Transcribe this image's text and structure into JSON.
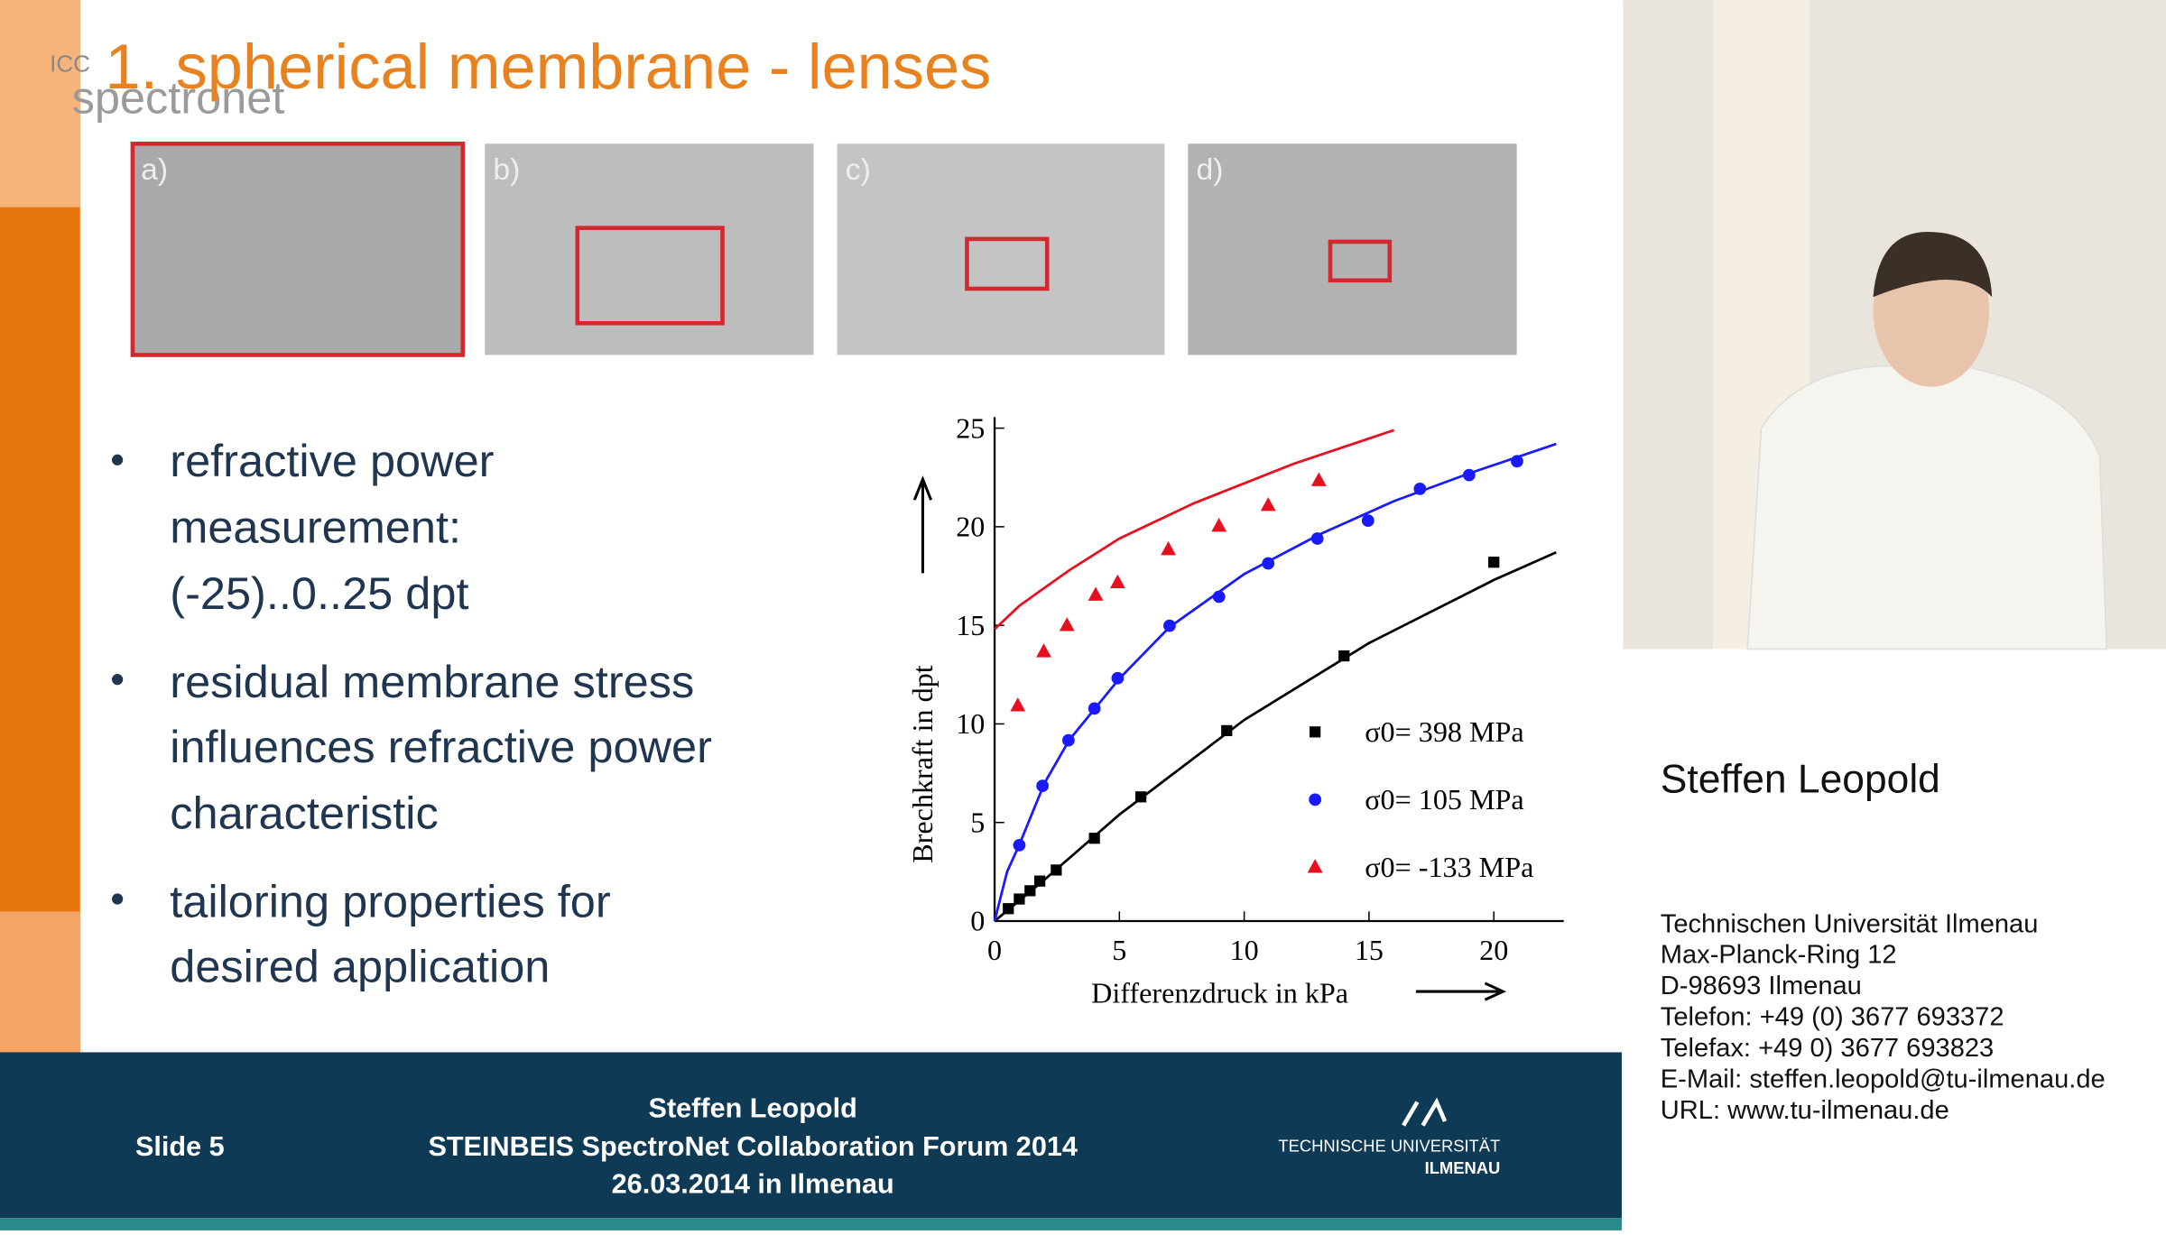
{
  "slide": {
    "logo": {
      "top": "ICC",
      "bottom": "spectronet"
    },
    "title": "1. spherical membrane - lenses",
    "panels": [
      "a)",
      "b)",
      "c)",
      "d)"
    ],
    "bullets": [
      [
        "refractive power",
        "measurement:",
        "(-25)..0..25 dpt"
      ],
      [
        "residual membrane stress",
        "influences refractive power",
        "characteristic"
      ],
      [
        "tailoring properties for",
        "desired application"
      ]
    ],
    "footer": {
      "slide": "Slide 5",
      "lines": [
        "Steffen Leopold",
        "STEINBEIS SpectroNet Collaboration Forum 2014",
        "26.03.2014 in Ilmenau"
      ],
      "logo": [
        "TECHNISCHE UNIVERSITÄT",
        "ILMENAU"
      ]
    }
  },
  "speaker": {
    "name": "Steffen Leopold",
    "contact": [
      "Technischen Universität Ilmenau",
      "Max-Planck-Ring 12",
      "D-98693 Ilmenau",
      "Telefon: +49 (0) 3677 693372",
      "Telefax: +49 0) 3677 693823",
      "E-Mail: steffen.leopold@tu-ilmenau.de",
      "URL: www.tu-ilmenau.de"
    ]
  },
  "chart_data": {
    "type": "scatter",
    "x_label": "Differenzdruck in kPa",
    "y_label": "Brechkraft in dpt",
    "xlim": [
      0,
      22.8
    ],
    "ylim": [
      0,
      25
    ],
    "xticks": [
      0,
      5,
      10,
      15,
      20
    ],
    "yticks": [
      0,
      5,
      10,
      15,
      20,
      25
    ],
    "series": [
      {
        "name": "σ0= 398 MPa",
        "color": "#000000",
        "marker": "square",
        "x": [
          0.55,
          0.99,
          1.42,
          1.81,
          2.47,
          4.0,
          5.86,
          9.3,
          14.0,
          20.0
        ],
        "values": [
          0.63,
          1.12,
          1.54,
          2.03,
          2.59,
          4.2,
          6.3,
          9.66,
          13.45,
          18.2
        ]
      },
      {
        "name": "σ0= 105 MPa",
        "color": "#1a1aff",
        "marker": "circle",
        "x": [
          0.99,
          1.92,
          2.96,
          4.0,
          4.93,
          7.01,
          8.99,
          10.96,
          12.93,
          14.96,
          17.04,
          19.01,
          20.93
        ],
        "values": [
          3.85,
          6.86,
          9.17,
          10.78,
          12.32,
          14.98,
          16.45,
          18.14,
          19.4,
          20.31,
          21.92,
          22.62,
          23.32
        ]
      },
      {
        "name": "σ0= -133 MPa",
        "color": "#e8101e",
        "marker": "triangle",
        "x": [
          0.93,
          1.97,
          2.9,
          4.05,
          4.93,
          6.96,
          8.99,
          10.96,
          12.99
        ],
        "values": [
          10.92,
          13.66,
          14.99,
          16.53,
          17.16,
          18.84,
          20.03,
          21.08,
          22.34
        ]
      }
    ],
    "fits": [
      {
        "color": "#000000",
        "x": [
          0,
          2,
          5,
          10,
          15,
          20,
          22.5
        ],
        "values": [
          0,
          2.1,
          5.4,
          10.2,
          14.1,
          17.3,
          18.7
        ]
      },
      {
        "color": "#1a1aff",
        "x": [
          0,
          0.5,
          1,
          2,
          3,
          5,
          7,
          10,
          13,
          16,
          19,
          22.5
        ],
        "values": [
          0,
          2.5,
          3.9,
          7.0,
          9.2,
          12.3,
          14.9,
          17.6,
          19.6,
          21.3,
          22.7,
          24.2
        ]
      },
      {
        "color": "#e8101e",
        "x": [
          0,
          1,
          3,
          5,
          8,
          12,
          16
        ],
        "values": [
          14.8,
          16.0,
          17.8,
          19.4,
          21.2,
          23.2,
          24.9
        ]
      }
    ]
  }
}
